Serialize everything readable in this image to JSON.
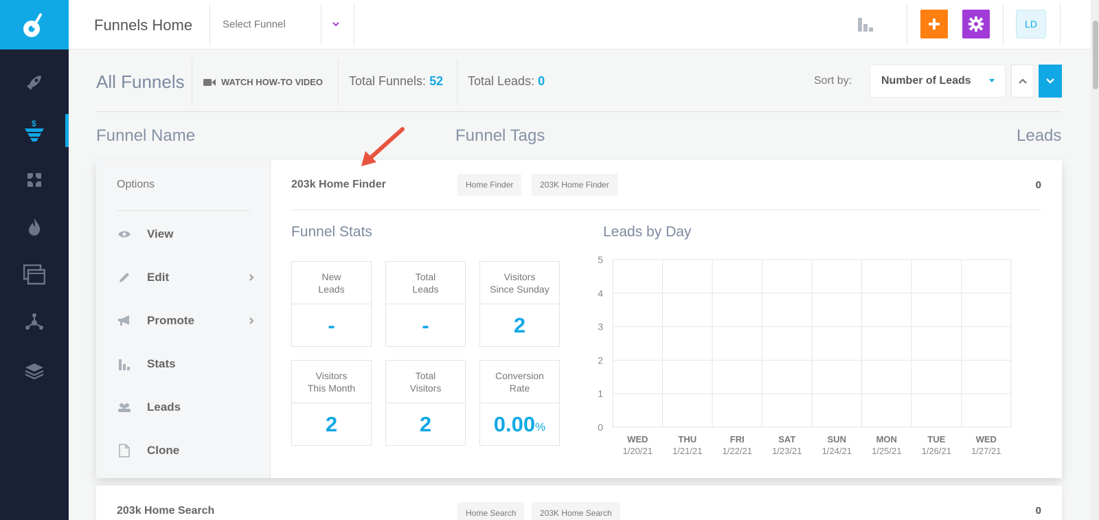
{
  "app": {
    "title": "Funnels Home",
    "select_funnel_placeholder": "Select Funnel",
    "avatar_initials": "LD"
  },
  "colors": {
    "accent": "#11a8e6",
    "sidebar": "#1a2135",
    "add_button": "#ff7f11",
    "settings_button": "#a13cd9",
    "annotation_arrow": "#e8533f"
  },
  "sidebar": {
    "items": [
      {
        "icon": "rocket-icon"
      },
      {
        "icon": "funnel-dollar-icon",
        "active": true
      },
      {
        "icon": "tools-icon"
      },
      {
        "icon": "fire-icon"
      },
      {
        "icon": "windows-icon"
      },
      {
        "icon": "network-icon"
      },
      {
        "icon": "layers-icon"
      }
    ]
  },
  "header": {
    "all_funnels": "All Funnels",
    "watch_video": "WATCH HOW-TO VIDEO",
    "total_funnels_label": "Total Funnels:",
    "total_funnels_value": "52",
    "total_leads_label": "Total Leads:",
    "total_leads_value": "0",
    "sort_by_label": "Sort by:",
    "sort_by_value": "Number of Leads"
  },
  "columns": {
    "name": "Funnel Name",
    "tags": "Funnel Tags",
    "leads": "Leads"
  },
  "funnel": {
    "name": "203k Home Finder",
    "tags": [
      "Home Finder",
      "203K Home Finder"
    ],
    "leads": "0",
    "options_title": "Options",
    "options": [
      {
        "label": "View",
        "icon": "eye-icon",
        "submenu": false
      },
      {
        "label": "Edit",
        "icon": "pencil-icon",
        "submenu": true
      },
      {
        "label": "Promote",
        "icon": "megaphone-icon",
        "submenu": true
      },
      {
        "label": "Stats",
        "icon": "bar-chart-icon",
        "submenu": false
      },
      {
        "label": "Leads",
        "icon": "users-icon",
        "submenu": false
      },
      {
        "label": "Clone",
        "icon": "copy-icon",
        "submenu": false
      }
    ],
    "stats_title": "Funnel Stats",
    "stats": [
      {
        "label": "New\nLeads",
        "value": "-"
      },
      {
        "label": "Total\nLeads",
        "value": "-"
      },
      {
        "label": "Visitors\nSince Sunday",
        "value": "2"
      },
      {
        "label": "Visitors\nThis Month",
        "value": "2"
      },
      {
        "label": "Total\nVisitors",
        "value": "2"
      },
      {
        "label": "Conversion\nRate",
        "value": "0.00",
        "unit": "%"
      }
    ],
    "chart_title": "Leads by Day"
  },
  "chart_data": {
    "type": "bar",
    "title": "Leads by Day",
    "categories": [
      {
        "day": "WED",
        "date": "1/20/21"
      },
      {
        "day": "THU",
        "date": "1/21/21"
      },
      {
        "day": "FRI",
        "date": "1/22/21"
      },
      {
        "day": "SAT",
        "date": "1/23/21"
      },
      {
        "day": "SUN",
        "date": "1/24/21"
      },
      {
        "day": "MON",
        "date": "1/25/21"
      },
      {
        "day": "TUE",
        "date": "1/26/21"
      },
      {
        "day": "WED",
        "date": "1/27/21"
      }
    ],
    "values": [
      0,
      0,
      0,
      0,
      0,
      0,
      0,
      0
    ],
    "yticks": [
      "0",
      "1",
      "2",
      "3",
      "4",
      "5"
    ],
    "ylim": [
      0,
      5
    ],
    "grid": true
  },
  "next_funnel": {
    "name": "203k Home Search",
    "tags": [
      "Home Search",
      "203K Home Search"
    ],
    "leads": "0"
  }
}
